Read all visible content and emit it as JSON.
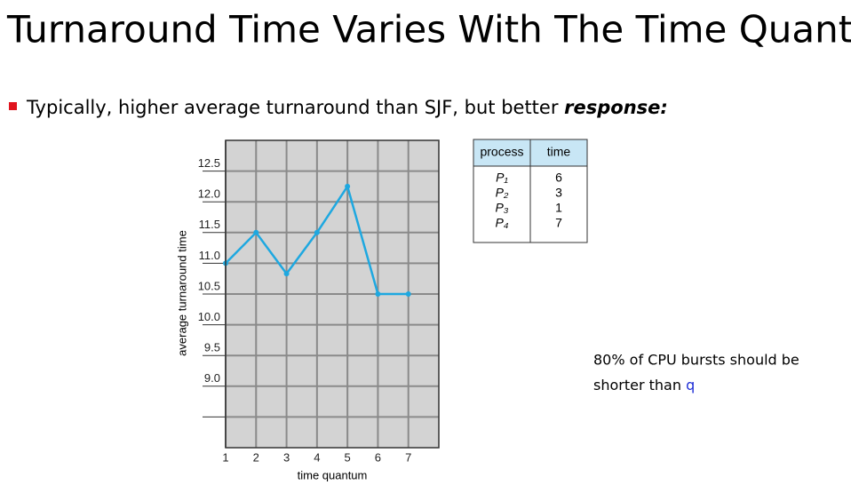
{
  "title": "Turnaround Time Varies With The Time Quantum",
  "bullet": {
    "text": "Typically, higher average turnaround than SJF, but better",
    "emphasis": "response:"
  },
  "chart_data": {
    "type": "line",
    "x_label": "time quantum",
    "y_label": "average turnaround time",
    "x": [
      1,
      2,
      3,
      4,
      5,
      6,
      7
    ],
    "values": [
      11.0,
      11.5,
      10.83,
      11.5,
      12.25,
      10.5,
      10.5
    ],
    "color": "#1ea8e0",
    "xlim": [
      1,
      8
    ],
    "xticks": [
      1,
      2,
      3,
      4,
      5,
      6,
      7
    ],
    "ylim": [
      8,
      13
    ],
    "yticks": [
      {
        "value": 8.5,
        "label": null
      },
      {
        "value": 9,
        "label": "9.0"
      },
      {
        "value": 9.5,
        "label": "9.5"
      },
      {
        "value": 10,
        "label": "10.0"
      },
      {
        "value": 10.5,
        "label": "10.5"
      },
      {
        "value": 11,
        "label": "11.0"
      },
      {
        "value": 11.5,
        "label": "11.5"
      },
      {
        "value": 12,
        "label": "12.0"
      },
      {
        "value": 12.5,
        "label": "12.5"
      }
    ],
    "grid": true
  },
  "table": {
    "header": [
      "process",
      "time"
    ],
    "rows": [
      [
        "P₁",
        "6"
      ],
      [
        "P₂",
        "3"
      ],
      [
        "P₃",
        "1"
      ],
      [
        "P₄",
        "7"
      ]
    ]
  },
  "note": {
    "lines": [
      "80% of CPU bursts should be",
      "shorter than"
    ],
    "variable": "q"
  }
}
